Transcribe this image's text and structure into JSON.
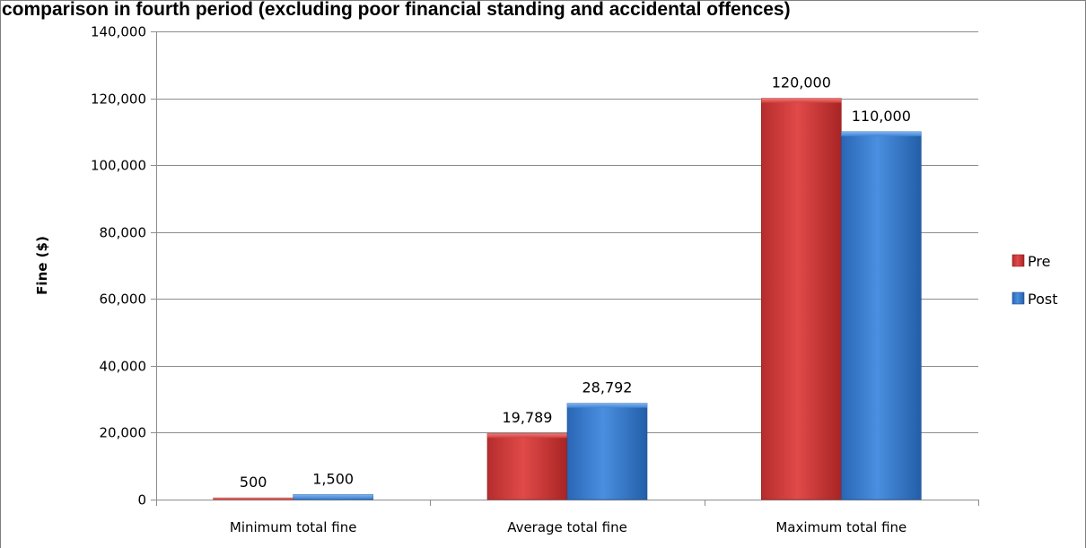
{
  "chart_data": {
    "type": "bar",
    "title": "comparison in fourth period (excluding poor financial standing and accidental offences)",
    "xlabel": "",
    "ylabel": "Fine ($)",
    "categories": [
      "Minimum total fine",
      "Average total fine",
      "Maximum total fine"
    ],
    "series": [
      {
        "name": "Pre",
        "values": [
          500,
          19789,
          120000
        ],
        "labels": [
          "500",
          "19,789",
          "120,000"
        ],
        "color": "#c0392b"
      },
      {
        "name": "Post",
        "values": [
          1500,
          28792,
          110000
        ],
        "labels": [
          "1,500",
          "28,792",
          "110,000"
        ],
        "color": "#2f74c8"
      }
    ],
    "ylim": [
      0,
      140000
    ],
    "yticks": [
      0,
      20000,
      40000,
      60000,
      80000,
      100000,
      120000,
      140000
    ],
    "ytick_labels": [
      "0",
      "20,000",
      "40,000",
      "60,000",
      "80,000",
      "100,000",
      "120,000",
      "140,000"
    ],
    "grid": true,
    "legend_position": "right"
  }
}
